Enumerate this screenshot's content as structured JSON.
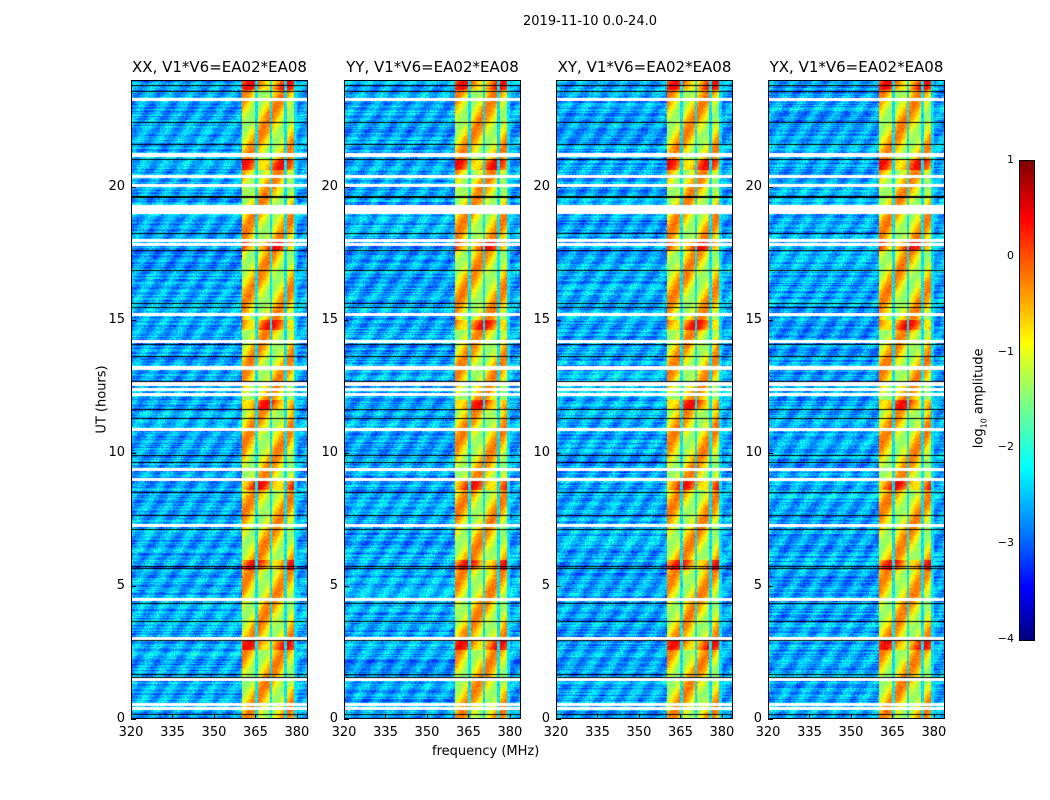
{
  "suptitle": "2019-11-10 0.0-24.0",
  "chart_data": {
    "type": "heatmap",
    "title": "2019-11-10 0.0-24.0",
    "xlabel": "frequency (MHz)",
    "ylabel": "UT (hours)",
    "xlim": [
      320,
      384
    ],
    "ylim": [
      0,
      24
    ],
    "xticks": [
      "320",
      "335",
      "350",
      "365",
      "380"
    ],
    "yticks": [
      "0",
      "5",
      "10",
      "15",
      "20"
    ],
    "panels": [
      {
        "title": "XX, V1*V6=EA02*EA08"
      },
      {
        "title": "YY, V1*V6=EA02*EA08"
      },
      {
        "title": "XY, V1*V6=EA02*EA08"
      },
      {
        "title": "YX, V1*V6=EA02*EA08"
      }
    ],
    "bright_band_mhz": [
      360,
      380
    ],
    "flagged_hours": [
      0.4,
      0.55,
      1.5,
      3.05,
      4.5,
      7.3,
      9.0,
      9.4,
      10.9,
      12.2,
      12.4,
      12.6,
      13.2,
      14.2,
      15.2,
      17.85,
      18.0,
      19.05,
      19.15,
      19.25,
      20.05,
      20.4,
      21.2,
      23.3
    ],
    "colorbar": {
      "label": "log10 amplitude",
      "label_main": "log",
      "label_sub": "10",
      "label_rest": " amplitude",
      "range": [
        -4,
        1
      ],
      "ticks": [
        "1",
        "0",
        "−1",
        "−2",
        "−3",
        "−4"
      ],
      "colormap": "jet"
    }
  }
}
